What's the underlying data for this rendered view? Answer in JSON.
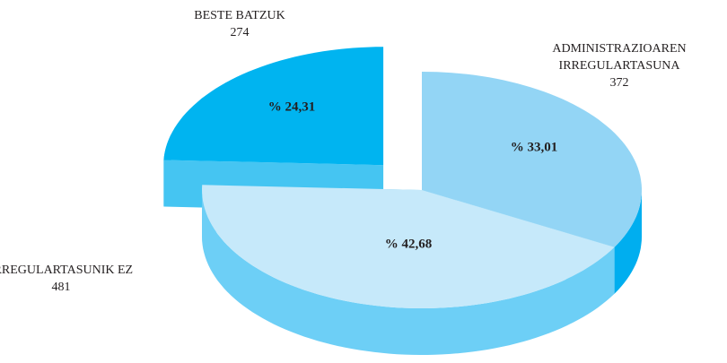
{
  "chart_data": {
    "type": "pie3d",
    "categories": [
      "ADMINISTRAZIOAREN IRREGULARTASUNA",
      "IRREGULARTASUNIK EZ",
      "BESTE BATZUK"
    ],
    "values": [
      33.01,
      42.68,
      24.31
    ],
    "value_labels": [
      "% 33,01",
      "% 42,68",
      "% 24,31"
    ],
    "counts": [
      372,
      481,
      274
    ],
    "colors": [
      "#93d5f5",
      "#c6e9fa",
      "#00b4f0"
    ],
    "side_colors": [
      "#00aeef",
      "#6dcff6",
      "#45c5f2"
    ]
  }
}
